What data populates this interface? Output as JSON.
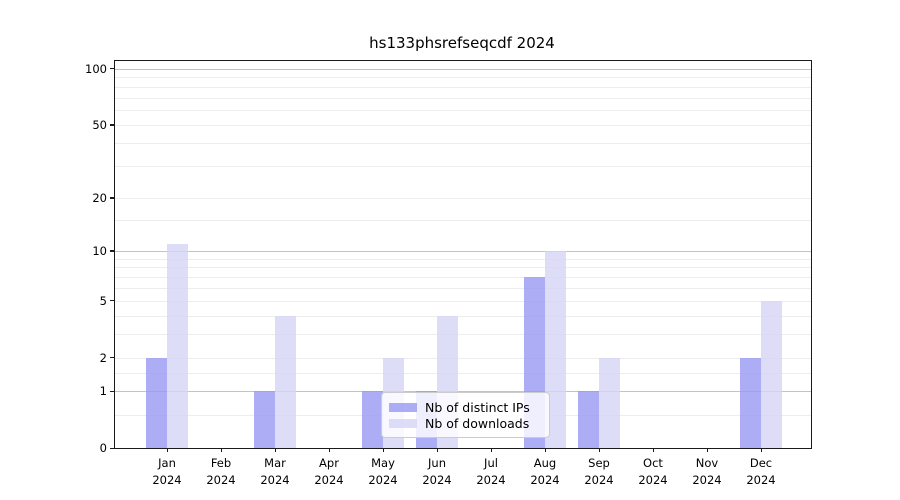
{
  "chart_data": {
    "type": "bar",
    "title": "hs133phsrefseqcdf 2024",
    "categories": [
      "Jan",
      "Feb",
      "Mar",
      "Apr",
      "May",
      "Jun",
      "Jul",
      "Aug",
      "Sep",
      "Oct",
      "Nov",
      "Dec"
    ],
    "year_label": "2024",
    "series": [
      {
        "name": "Nb of distinct IPs",
        "color": "#9898f3",
        "values": [
          2,
          0,
          1,
          0,
          1,
          1,
          0,
          7,
          1,
          0,
          0,
          2
        ]
      },
      {
        "name": "Nb of downloads",
        "color": "#d5d5f6",
        "values": [
          11,
          0,
          4,
          0,
          2,
          4,
          0,
          10,
          2,
          0,
          0,
          5
        ]
      }
    ],
    "bar_alpha": 0.8,
    "yscale": "log1p",
    "ylim": [
      0,
      110
    ],
    "yticks": [
      0,
      1,
      2,
      5,
      10,
      20,
      50,
      100
    ],
    "grid_major": [
      1,
      10,
      100
    ],
    "grid_minor": [
      0.5,
      1.5,
      2,
      3,
      4,
      5,
      6,
      7,
      8,
      9,
      15,
      20,
      30,
      40,
      50,
      60,
      70,
      80,
      90
    ],
    "legend_position": "lower center",
    "colors": {
      "grid_major": "#c3c3c3",
      "grid_minor": "#ededed",
      "axis": "#1a1a1a"
    }
  }
}
